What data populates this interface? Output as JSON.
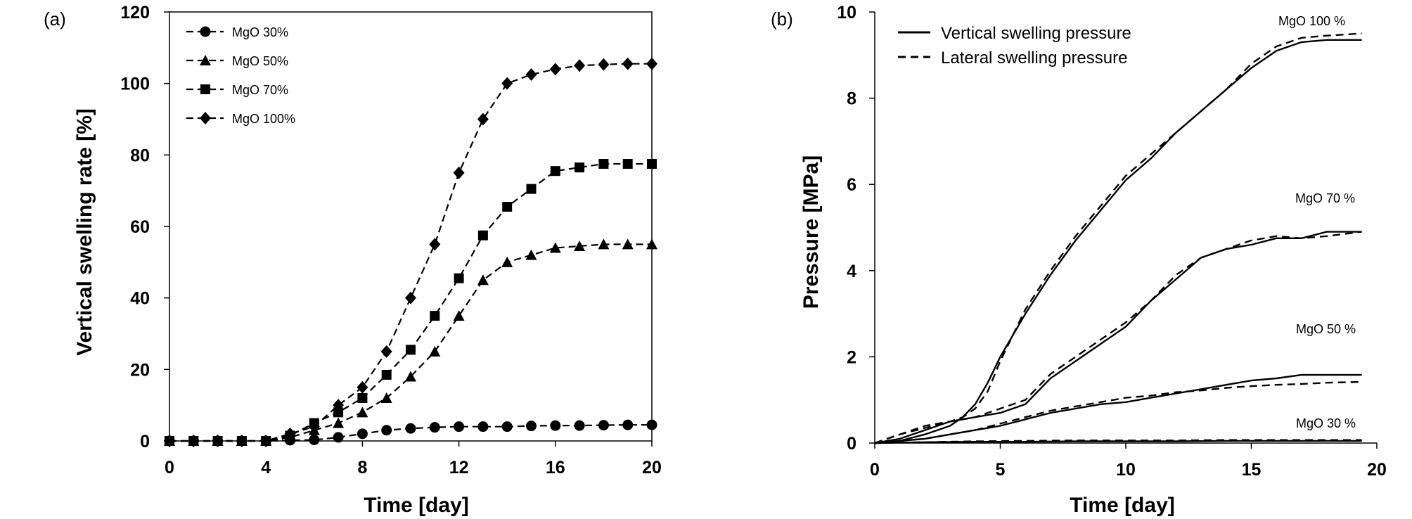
{
  "chart_data": [
    {
      "type": "line",
      "panel_label": "(a)",
      "title": "",
      "xlabel": "Time [day]",
      "ylabel": "Vertical swelling rate [%]",
      "xlim": [
        0,
        20
      ],
      "ylim": [
        0,
        120
      ],
      "xticks": [
        "0",
        "4",
        "8",
        "12",
        "16",
        "20"
      ],
      "yticks": [
        "0",
        "20",
        "40",
        "60",
        "80",
        "100",
        "120"
      ],
      "legend_position": "top-left",
      "x": [
        0,
        1,
        2,
        3,
        4,
        5,
        6,
        7,
        8,
        9,
        10,
        11,
        12,
        13,
        14,
        15,
        16,
        17,
        18,
        19,
        20
      ],
      "series": [
        {
          "name": "MgO 30%",
          "marker": "circle",
          "values": [
            0,
            0,
            0,
            0,
            0,
            0.2,
            0.3,
            1,
            2,
            3,
            3.5,
            3.8,
            4,
            4,
            4,
            4.2,
            4.3,
            4.3,
            4.4,
            4.5,
            4.5
          ]
        },
        {
          "name": "MgO 50%",
          "marker": "triangle",
          "values": [
            0,
            0,
            0,
            0,
            0,
            1,
            3,
            5,
            8,
            12,
            18,
            25,
            35,
            45,
            50,
            52,
            54,
            54.5,
            55,
            55,
            55
          ]
        },
        {
          "name": "MgO 70%",
          "marker": "square",
          "values": [
            0,
            0,
            0,
            0,
            0,
            1.5,
            5,
            8,
            12,
            18.5,
            25.5,
            35,
            45.5,
            57.5,
            65.5,
            70.5,
            75.5,
            76.5,
            77.5,
            77.5,
            77.5
          ]
        },
        {
          "name": "MgO 100%",
          "marker": "diamond",
          "values": [
            0,
            0,
            0,
            0,
            0,
            2,
            4,
            10,
            15,
            25,
            40,
            55,
            75,
            90,
            100,
            102.5,
            104,
            105,
            105.3,
            105.5,
            105.5
          ]
        }
      ]
    },
    {
      "type": "line",
      "panel_label": "(b)",
      "title": "",
      "xlabel": "Time [day]",
      "ylabel": "Pressure [MPa]",
      "xlim": [
        0,
        20
      ],
      "ylim": [
        0,
        10
      ],
      "xticks": [
        "0",
        "5",
        "10",
        "15",
        "20"
      ],
      "yticks": [
        "0",
        "2",
        "4",
        "6",
        "8",
        "10"
      ],
      "legend_position": "top-left",
      "legend": [
        "Vertical swelling pressure",
        "Lateral swelling pressure"
      ],
      "annotations": [
        "MgO 100 %",
        "MgO 70 %",
        "MgO 50 %",
        "MgO 30 %"
      ],
      "series": [
        {
          "name": "MgO 100 % vertical",
          "style": "solid",
          "x": [
            0,
            1,
            2,
            3,
            3.5,
            4,
            4.5,
            5,
            5.5,
            6,
            7,
            8,
            9,
            10,
            11,
            12,
            13,
            14,
            15,
            16,
            17,
            18,
            19.4
          ],
          "y": [
            0,
            0.05,
            0.2,
            0.4,
            0.6,
            0.9,
            1.4,
            2.0,
            2.5,
            3.0,
            3.9,
            4.7,
            5.4,
            6.1,
            6.6,
            7.2,
            7.7,
            8.2,
            8.7,
            9.1,
            9.3,
            9.35,
            9.35
          ]
        },
        {
          "name": "MgO 100 % lateral",
          "style": "dashed",
          "x": [
            0,
            1,
            2,
            3,
            3.5,
            4,
            4.5,
            5,
            5.5,
            6,
            7,
            8,
            9,
            10,
            11,
            12,
            13,
            14,
            15,
            16,
            17,
            18,
            19.4
          ],
          "y": [
            0,
            0.2,
            0.35,
            0.5,
            0.6,
            0.8,
            1.2,
            1.9,
            2.5,
            3.1,
            4.0,
            4.8,
            5.5,
            6.2,
            6.7,
            7.2,
            7.7,
            8.2,
            8.8,
            9.2,
            9.4,
            9.45,
            9.5
          ]
        },
        {
          "name": "MgO 70 % vertical",
          "style": "solid",
          "x": [
            0,
            1,
            2,
            3,
            4,
            5,
            6,
            7,
            8,
            9,
            10,
            11,
            12,
            13,
            14,
            15,
            16,
            17,
            18,
            19.4
          ],
          "y": [
            0,
            0.1,
            0.3,
            0.5,
            0.6,
            0.7,
            0.9,
            1.5,
            1.9,
            2.3,
            2.7,
            3.3,
            3.8,
            4.3,
            4.5,
            4.6,
            4.75,
            4.75,
            4.9,
            4.9
          ]
        },
        {
          "name": "MgO 70 % lateral",
          "style": "dashed",
          "x": [
            0,
            1,
            2,
            3,
            4,
            5,
            6,
            7,
            8,
            9,
            10,
            11,
            12,
            13,
            14,
            15,
            16,
            17,
            18,
            19.4
          ],
          "y": [
            0,
            0.2,
            0.4,
            0.5,
            0.6,
            0.8,
            1.0,
            1.6,
            2.0,
            2.4,
            2.8,
            3.3,
            3.9,
            4.3,
            4.5,
            4.7,
            4.8,
            4.75,
            4.8,
            4.9
          ]
        },
        {
          "name": "MgO 50 % vertical",
          "style": "solid",
          "x": [
            0,
            1,
            2,
            3,
            4,
            5,
            6,
            7,
            8,
            9,
            10,
            11,
            12,
            13,
            14,
            15,
            16,
            17,
            18,
            19.4
          ],
          "y": [
            0,
            0.05,
            0.1,
            0.2,
            0.3,
            0.4,
            0.55,
            0.7,
            0.8,
            0.9,
            0.95,
            1.05,
            1.15,
            1.25,
            1.35,
            1.45,
            1.5,
            1.58,
            1.58,
            1.58
          ]
        },
        {
          "name": "MgO 50 % lateral",
          "style": "dashed",
          "x": [
            0,
            1,
            2,
            3,
            4,
            5,
            6,
            7,
            8,
            9,
            10,
            11,
            12,
            13,
            14,
            15,
            16,
            17,
            18,
            19.4
          ],
          "y": [
            0,
            0.05,
            0.1,
            0.2,
            0.3,
            0.45,
            0.6,
            0.75,
            0.85,
            0.95,
            1.05,
            1.1,
            1.18,
            1.22,
            1.28,
            1.32,
            1.35,
            1.37,
            1.4,
            1.42
          ]
        },
        {
          "name": "MgO 30 % vertical",
          "style": "solid",
          "x": [
            0,
            2,
            4,
            6,
            8,
            10,
            12,
            14,
            16,
            18,
            19.4
          ],
          "y": [
            0,
            0.02,
            0.03,
            0.03,
            0.04,
            0.04,
            0.04,
            0.05,
            0.05,
            0.05,
            0.05
          ]
        },
        {
          "name": "MgO 30 % lateral",
          "style": "dashed",
          "x": [
            0,
            2,
            4,
            6,
            8,
            10,
            12,
            14,
            16,
            18,
            19.4
          ],
          "y": [
            0,
            0.02,
            0.04,
            0.05,
            0.06,
            0.06,
            0.06,
            0.07,
            0.07,
            0.07,
            0.07
          ]
        }
      ]
    }
  ]
}
